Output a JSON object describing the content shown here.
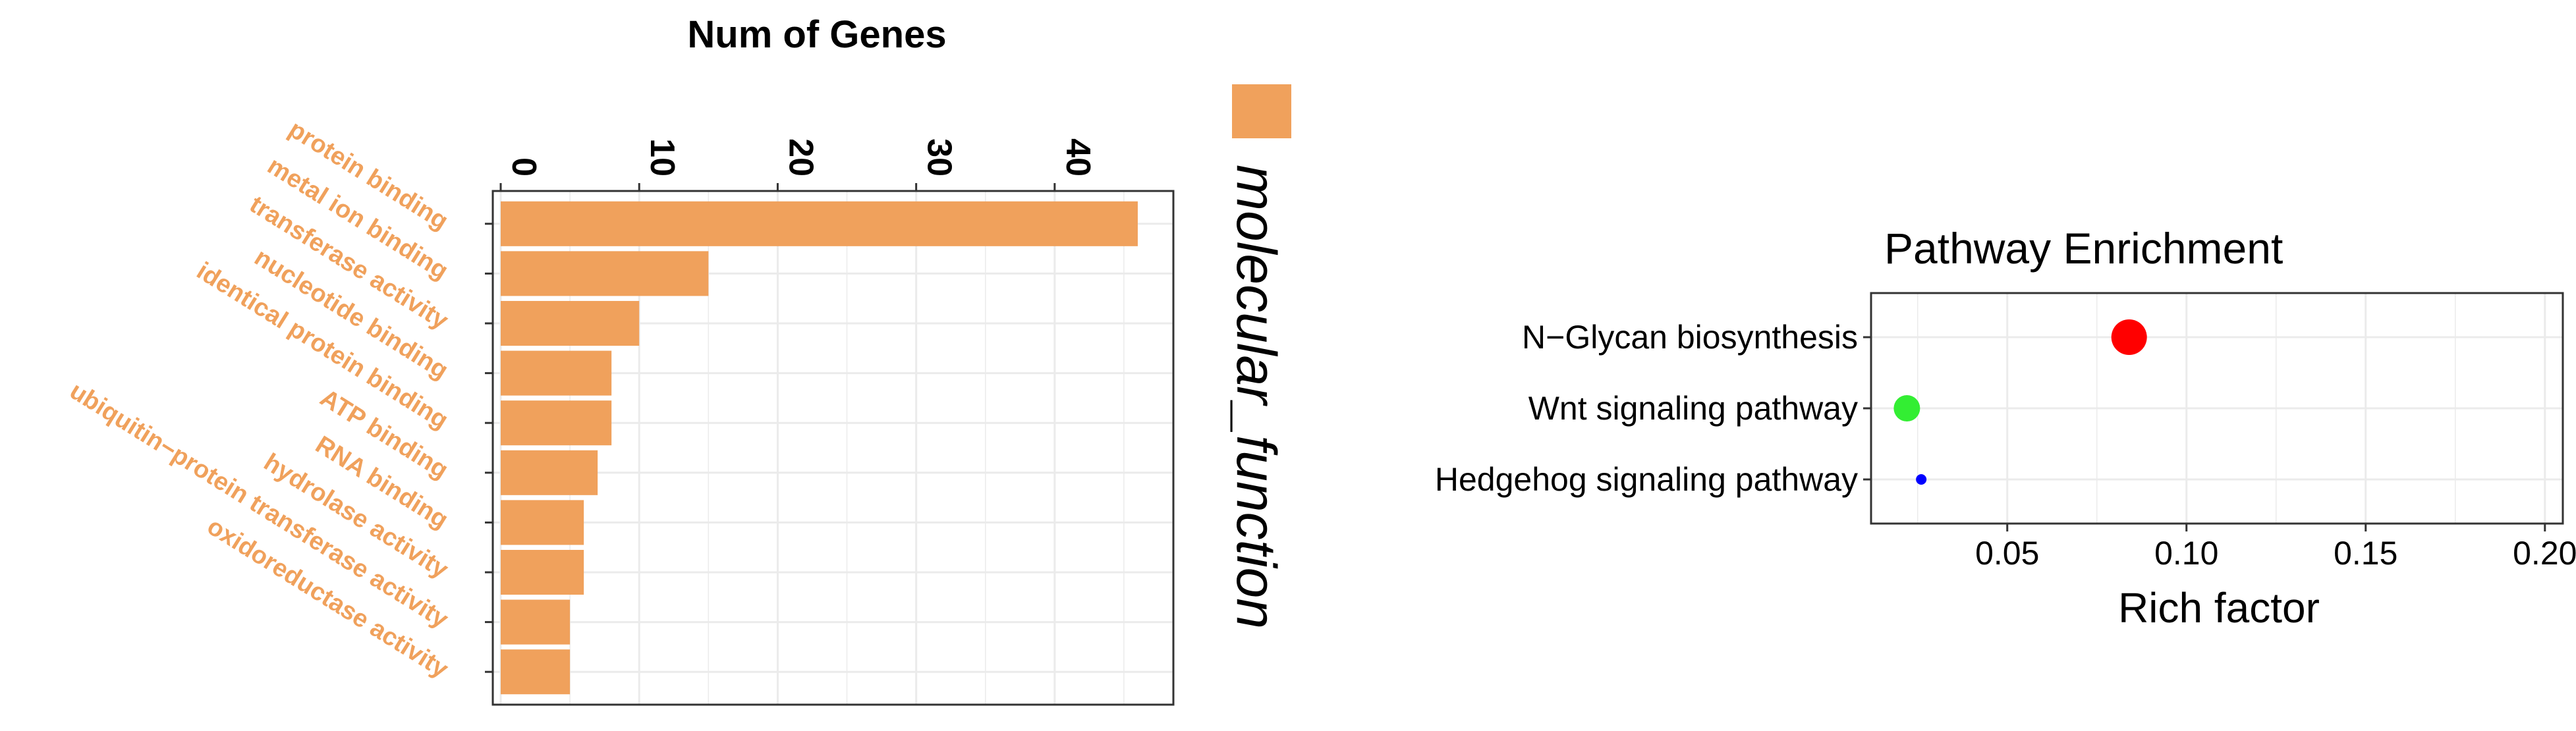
{
  "chart_data": [
    {
      "type": "bar",
      "orientation": "horizontal",
      "title": "Num of Genes",
      "legend": {
        "entries": [
          "molecular_function"
        ],
        "placement": "right"
      },
      "categories": [
        "protein binding",
        "metal ion binding",
        "transferase activity",
        "nucleotide binding",
        "identical protein binding",
        "ATP binding",
        "RNA binding",
        "hydrolase activity",
        "ubiquitin−protein transferase activity",
        "oxidoreductase activity"
      ],
      "series": [
        {
          "name": "molecular_function",
          "values": [
            46,
            15,
            10,
            8,
            8,
            7,
            6,
            6,
            5,
            5
          ]
        }
      ],
      "ticks": [
        "0",
        "10",
        "20",
        "30",
        "40"
      ],
      "tick_values": [
        0,
        10,
        20,
        30,
        40
      ],
      "xlim": [
        0,
        48
      ],
      "grid": true,
      "colors": {
        "bar": "#f0a15c",
        "label": "#f0a15c",
        "panel_border": "#333333",
        "grid": "#ebebeb"
      }
    },
    {
      "type": "scatter",
      "title": "Pathway Enrichment",
      "xlabel": "Rich factor",
      "categories": [
        "N−Glycan biosynthesis",
        "Wnt signaling pathway",
        "Hedgehog signaling pathway"
      ],
      "points": [
        {
          "category": "N−Glycan biosynthesis",
          "x": 0.084,
          "size": 3,
          "color": "#ff0000"
        },
        {
          "category": "Wnt signaling pathway",
          "x": 0.022,
          "size": 2,
          "color": "#33ee33"
        },
        {
          "category": "Hedgehog signaling pathway",
          "x": 0.026,
          "size": 1,
          "color": "#0000ff"
        }
      ],
      "ticks": [
        "0.05",
        "0.10",
        "0.15",
        "0.20"
      ],
      "tick_values": [
        0.05,
        0.1,
        0.15,
        0.2
      ],
      "xlim": [
        0.012,
        0.205
      ],
      "grid": true,
      "colors": {
        "panel_border": "#333333",
        "grid": "#ebebeb"
      }
    }
  ]
}
